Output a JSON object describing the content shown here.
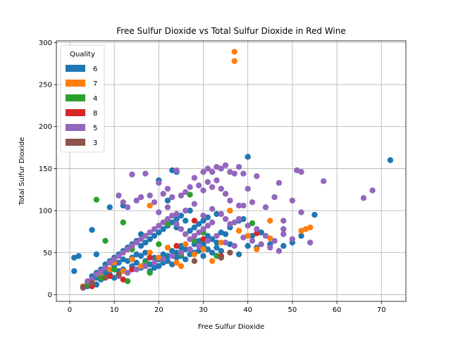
{
  "chart_data": {
    "type": "scatter",
    "title": "Free Sulfur Dioxide vs Total Sulfur Dioxide in Red Wine",
    "xlabel": "Free Sulfur Dioxide",
    "ylabel": "Total Sulfur Dioxide",
    "xlim": [
      -3,
      75.5
    ],
    "ylim": [
      -8,
      302
    ],
    "xticks": [
      0,
      10,
      20,
      30,
      40,
      50,
      60,
      70
    ],
    "yticks": [
      0,
      50,
      100,
      150,
      200,
      250,
      300
    ],
    "grid": true,
    "legend": {
      "title": "Quality",
      "placement": "upper-left"
    },
    "series": [
      {
        "name": "6",
        "color": "#1f77b4",
        "points": [
          [
            1,
            28
          ],
          [
            1,
            44
          ],
          [
            2,
            46
          ],
          [
            5,
            77
          ],
          [
            6,
            48
          ],
          [
            9,
            104
          ],
          [
            12,
            106
          ],
          [
            16,
            72
          ],
          [
            20,
            136
          ],
          [
            22,
            112
          ],
          [
            23,
            148
          ],
          [
            24,
            146
          ],
          [
            24,
            80
          ],
          [
            25,
            58
          ],
          [
            27,
            100
          ],
          [
            30,
            60
          ],
          [
            33,
            62
          ],
          [
            36,
            60
          ],
          [
            38,
            48
          ],
          [
            40,
            58
          ],
          [
            40,
            164
          ],
          [
            41,
            70
          ],
          [
            42,
            56
          ],
          [
            43,
            74
          ],
          [
            45,
            60
          ],
          [
            48,
            58
          ],
          [
            50,
            62
          ],
          [
            52,
            70
          ],
          [
            55,
            95
          ],
          [
            72,
            160
          ],
          [
            4,
            10
          ],
          [
            5,
            14
          ],
          [
            6,
            12
          ],
          [
            7,
            18
          ],
          [
            8,
            22
          ],
          [
            9,
            24
          ],
          [
            10,
            20
          ],
          [
            11,
            28
          ],
          [
            12,
            30
          ],
          [
            13,
            26
          ],
          [
            14,
            34
          ],
          [
            15,
            38
          ],
          [
            16,
            32
          ],
          [
            17,
            40
          ],
          [
            18,
            36
          ],
          [
            19,
            44
          ],
          [
            20,
            42
          ],
          [
            21,
            48
          ],
          [
            22,
            46
          ],
          [
            23,
            52
          ],
          [
            24,
            50
          ],
          [
            25,
            56
          ],
          [
            26,
            54
          ],
          [
            28,
            60
          ],
          [
            29,
            64
          ],
          [
            30,
            58
          ],
          [
            31,
            70
          ],
          [
            32,
            66
          ],
          [
            34,
            74
          ],
          [
            35,
            72
          ],
          [
            6,
            20
          ],
          [
            7,
            30
          ],
          [
            8,
            36
          ],
          [
            9,
            40
          ],
          [
            10,
            44
          ],
          [
            11,
            48
          ],
          [
            12,
            52
          ],
          [
            13,
            56
          ],
          [
            14,
            60
          ],
          [
            15,
            64
          ],
          [
            16,
            58
          ],
          [
            17,
            62
          ],
          [
            18,
            66
          ],
          [
            19,
            70
          ],
          [
            20,
            74
          ],
          [
            21,
            78
          ],
          [
            22,
            82
          ],
          [
            23,
            86
          ],
          [
            24,
            90
          ],
          [
            25,
            94
          ],
          [
            26,
            88
          ],
          [
            27,
            76
          ],
          [
            28,
            80
          ],
          [
            29,
            84
          ],
          [
            30,
            88
          ],
          [
            31,
            92
          ],
          [
            33,
            96
          ],
          [
            36,
            80
          ],
          [
            38,
            88
          ],
          [
            39,
            90
          ],
          [
            5,
            22
          ],
          [
            6,
            26
          ],
          [
            7,
            24
          ],
          [
            8,
            28
          ],
          [
            9,
            30
          ],
          [
            10,
            34
          ],
          [
            11,
            38
          ],
          [
            12,
            42
          ],
          [
            13,
            40
          ],
          [
            14,
            44
          ],
          [
            15,
            48
          ],
          [
            16,
            46
          ],
          [
            17,
            50
          ],
          [
            18,
            28
          ],
          [
            19,
            32
          ],
          [
            20,
            34
          ],
          [
            21,
            38
          ],
          [
            22,
            40
          ],
          [
            23,
            36
          ],
          [
            24,
            44
          ],
          [
            25,
            46
          ],
          [
            26,
            42
          ],
          [
            27,
            48
          ],
          [
            28,
            50
          ],
          [
            29,
            52
          ],
          [
            30,
            46
          ],
          [
            31,
            54
          ],
          [
            32,
            50
          ],
          [
            33,
            56
          ],
          [
            34,
            52
          ]
        ]
      },
      {
        "name": "7",
        "color": "#ff7f0e",
        "points": [
          [
            37,
            289
          ],
          [
            37,
            278
          ],
          [
            3,
            10
          ],
          [
            5,
            16
          ],
          [
            7,
            22
          ],
          [
            9,
            30
          ],
          [
            10,
            38
          ],
          [
            12,
            28
          ],
          [
            14,
            42
          ],
          [
            16,
            34
          ],
          [
            18,
            50
          ],
          [
            20,
            44
          ],
          [
            22,
            56
          ],
          [
            24,
            38
          ],
          [
            26,
            60
          ],
          [
            28,
            48
          ],
          [
            30,
            54
          ],
          [
            32,
            40
          ],
          [
            34,
            62
          ],
          [
            36,
            100
          ],
          [
            38,
            76
          ],
          [
            40,
            70
          ],
          [
            42,
            54
          ],
          [
            45,
            88
          ],
          [
            45,
            67
          ],
          [
            52,
            76
          ],
          [
            53,
            78
          ],
          [
            54,
            80
          ],
          [
            18,
            106
          ],
          [
            25,
            34
          ]
        ]
      },
      {
        "name": "4",
        "color": "#2ca02c",
        "points": [
          [
            6,
            113
          ],
          [
            27,
            119
          ],
          [
            41,
            85
          ],
          [
            8,
            64
          ],
          [
            12,
            86
          ],
          [
            4,
            12
          ],
          [
            7,
            20
          ],
          [
            10,
            30
          ],
          [
            14,
            54
          ],
          [
            17,
            38
          ],
          [
            20,
            60
          ],
          [
            22,
            84
          ],
          [
            25,
            48
          ],
          [
            28,
            64
          ],
          [
            30,
            74
          ],
          [
            33,
            46
          ],
          [
            18,
            26
          ],
          [
            13,
            16
          ]
        ]
      },
      {
        "name": "8",
        "color": "#d62728",
        "points": [
          [
            42,
            73
          ],
          [
            34,
            46
          ],
          [
            28,
            88
          ],
          [
            5,
            10
          ],
          [
            9,
            22
          ],
          [
            14,
            30
          ],
          [
            18,
            44
          ],
          [
            24,
            58
          ],
          [
            30,
            66
          ],
          [
            12,
            18
          ]
        ]
      },
      {
        "name": "5",
        "color": "#9467bd",
        "points": [
          [
            14,
            143
          ],
          [
            17,
            144
          ],
          [
            20,
            133
          ],
          [
            22,
            126
          ],
          [
            24,
            148
          ],
          [
            28,
            139
          ],
          [
            30,
            146
          ],
          [
            31,
            150
          ],
          [
            32,
            146
          ],
          [
            33,
            152
          ],
          [
            34,
            150
          ],
          [
            35,
            154
          ],
          [
            36,
            146
          ],
          [
            37,
            144
          ],
          [
            38,
            152
          ],
          [
            39,
            144
          ],
          [
            40,
            126
          ],
          [
            41,
            110
          ],
          [
            42,
            141
          ],
          [
            44,
            104
          ],
          [
            46,
            116
          ],
          [
            47,
            133
          ],
          [
            48,
            88
          ],
          [
            48,
            78
          ],
          [
            50,
            112
          ],
          [
            51,
            148
          ],
          [
            52,
            146
          ],
          [
            52,
            98
          ],
          [
            57,
            135
          ],
          [
            66,
            115
          ],
          [
            68,
            124
          ],
          [
            11,
            118
          ],
          [
            12,
            110
          ],
          [
            13,
            104
          ],
          [
            15,
            112
          ],
          [
            16,
            116
          ],
          [
            18,
            118
          ],
          [
            19,
            110
          ],
          [
            21,
            120
          ],
          [
            23,
            116
          ],
          [
            25,
            118
          ],
          [
            26,
            122
          ],
          [
            27,
            128
          ],
          [
            29,
            130
          ],
          [
            30,
            124
          ],
          [
            31,
            134
          ],
          [
            32,
            128
          ],
          [
            33,
            136
          ],
          [
            34,
            126
          ],
          [
            35,
            120
          ],
          [
            36,
            112
          ],
          [
            38,
            106
          ],
          [
            39,
            106
          ],
          [
            20,
            98
          ],
          [
            22,
            104
          ],
          [
            24,
            96
          ],
          [
            26,
            100
          ],
          [
            28,
            108
          ],
          [
            30,
            94
          ],
          [
            32,
            102
          ],
          [
            34,
            96
          ],
          [
            3,
            8
          ],
          [
            4,
            16
          ],
          [
            5,
            18
          ],
          [
            6,
            24
          ],
          [
            7,
            28
          ],
          [
            8,
            32
          ],
          [
            9,
            38
          ],
          [
            10,
            42
          ],
          [
            11,
            46
          ],
          [
            12,
            50
          ],
          [
            13,
            54
          ],
          [
            14,
            58
          ],
          [
            15,
            62
          ],
          [
            16,
            66
          ],
          [
            17,
            70
          ],
          [
            18,
            74
          ],
          [
            19,
            78
          ],
          [
            20,
            82
          ],
          [
            21,
            86
          ],
          [
            22,
            90
          ],
          [
            23,
            94
          ],
          [
            24,
            84
          ],
          [
            25,
            78
          ],
          [
            26,
            72
          ],
          [
            27,
            66
          ],
          [
            28,
            70
          ],
          [
            29,
            74
          ],
          [
            30,
            78
          ],
          [
            31,
            82
          ],
          [
            32,
            86
          ],
          [
            35,
            90
          ],
          [
            36,
            84
          ],
          [
            37,
            86
          ],
          [
            38,
            90
          ],
          [
            40,
            82
          ],
          [
            42,
            78
          ],
          [
            44,
            70
          ],
          [
            46,
            64
          ],
          [
            48,
            72
          ],
          [
            50,
            66
          ],
          [
            54,
            62
          ],
          [
            43,
            60
          ],
          [
            45,
            56
          ],
          [
            47,
            52
          ],
          [
            41,
            64
          ],
          [
            39,
            68
          ],
          [
            37,
            58
          ],
          [
            35,
            62
          ],
          [
            33,
            70
          ],
          [
            31,
            64
          ],
          [
            29,
            58
          ],
          [
            27,
            54
          ],
          [
            25,
            50
          ],
          [
            23,
            46
          ],
          [
            21,
            42
          ],
          [
            19,
            38
          ],
          [
            17,
            34
          ],
          [
            15,
            30
          ],
          [
            13,
            26
          ],
          [
            11,
            22
          ]
        ]
      },
      {
        "name": "3",
        "color": "#8c564b",
        "points": [
          [
            3,
            9
          ],
          [
            5,
            14
          ],
          [
            8,
            20
          ],
          [
            11,
            24
          ],
          [
            34,
            44
          ],
          [
            36,
            50
          ],
          [
            28,
            40
          ]
        ]
      }
    ]
  }
}
